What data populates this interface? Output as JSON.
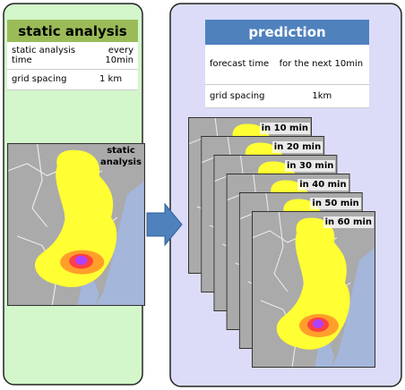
{
  "static_panel": {
    "title": "static analysis",
    "rows": [
      [
        "static analysis time",
        "every 10min"
      ],
      [
        "grid spacing",
        "1 km"
      ]
    ],
    "map_label": "static analysis"
  },
  "prediction_panel": {
    "title": "prediction",
    "rows": [
      [
        "forecast time",
        "for the next 10min"
      ],
      [
        "grid spacing",
        "1km"
      ]
    ],
    "map_labels": [
      "in 10 min",
      "in 20 min",
      "in 30 min",
      "in 40 min",
      "in 50 min",
      "in 60 min"
    ]
  }
}
